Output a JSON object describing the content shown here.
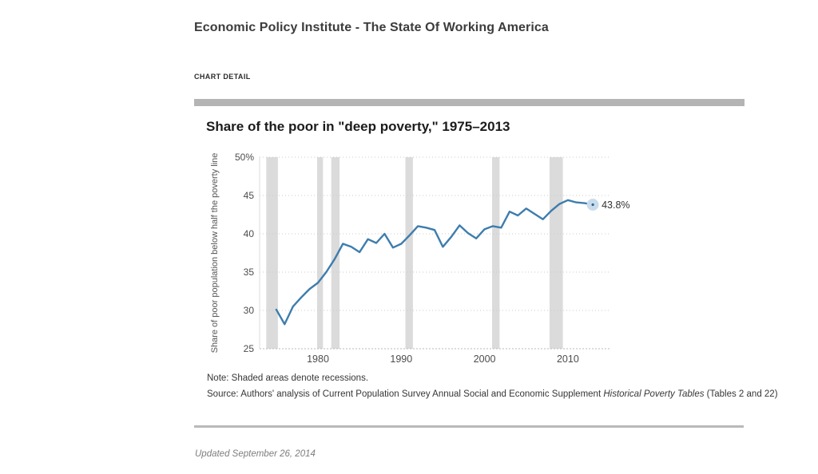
{
  "header": {
    "site_title": "Economic Policy Institute - The State Of Working America",
    "section_label": "CHART DETAIL"
  },
  "chart": {
    "title": "Share of the poor in \"deep poverty,\" 1975–2013",
    "note": "Note: Shaded areas denote recessions.",
    "source_prefix": "Source: Authors' analysis of Current Population Survey Annual Social and Economic Supplement ",
    "source_italic": "Historical Poverty Tables",
    "source_suffix": " (Tables 2 and 22)"
  },
  "chart_data": {
    "type": "line",
    "title": "Share of the poor in \"deep poverty,\" 1975–2013",
    "ylabel": "Share of poor population below half the poverty line",
    "x": [
      1975,
      1976,
      1977,
      1978,
      1979,
      1980,
      1981,
      1982,
      1983,
      1984,
      1985,
      1986,
      1987,
      1988,
      1989,
      1990,
      1991,
      1992,
      1993,
      1994,
      1995,
      1996,
      1997,
      1998,
      1999,
      2000,
      2001,
      2002,
      2003,
      2004,
      2005,
      2006,
      2007,
      2008,
      2009,
      2010,
      2011,
      2012,
      2013
    ],
    "values": [
      30.1,
      28.2,
      30.5,
      31.7,
      32.8,
      33.6,
      35.0,
      36.7,
      38.7,
      38.3,
      37.6,
      39.3,
      38.8,
      40.0,
      38.2,
      38.7,
      39.8,
      41.0,
      40.8,
      40.5,
      38.3,
      39.6,
      41.1,
      40.1,
      39.4,
      40.6,
      41.0,
      40.8,
      42.9,
      42.4,
      43.3,
      42.6,
      41.9,
      43.0,
      43.9,
      44.4,
      44.1,
      44.0,
      43.8
    ],
    "ylim": [
      25,
      50
    ],
    "xlim": [
      1973,
      2015
    ],
    "yticks": [
      25,
      30,
      35,
      40,
      45,
      50
    ],
    "ytick_labels": [
      "25",
      "30",
      "35",
      "40",
      "45",
      "50%"
    ],
    "xticks": [
      1980,
      1990,
      2000,
      2010
    ],
    "grid": "horizontal-dotted",
    "legend": "none",
    "line_color": "#3d7dad",
    "band_color": "#dbdbdb",
    "recession_bands": [
      [
        1973.8,
        1975.2
      ],
      [
        1979.9,
        1980.6
      ],
      [
        1981.6,
        1982.6
      ],
      [
        1990.5,
        1991.4
      ],
      [
        2000.9,
        2001.8
      ],
      [
        2007.8,
        2009.4
      ]
    ],
    "end_point_label": "43.8%",
    "annotations": [
      {
        "x": 2013,
        "y": 43.8,
        "text": "43.8%"
      }
    ]
  },
  "footer": {
    "updated": "Updated September 26, 2014"
  }
}
